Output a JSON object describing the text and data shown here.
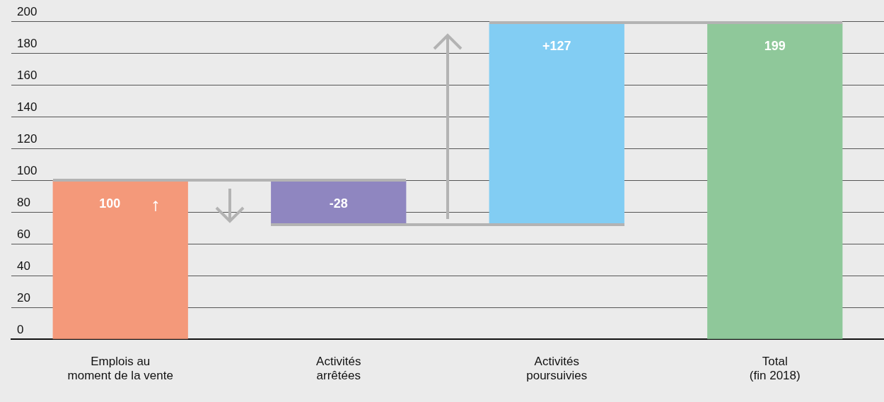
{
  "chart_data": {
    "type": "bar",
    "categories": [
      "Emplois au moment de la vente",
      "Activités arrêtées",
      "Activités poursuivies",
      "Total (fin 2018)"
    ],
    "values": [
      100,
      -28,
      127,
      199
    ],
    "base": [
      0,
      100,
      72,
      0
    ],
    "colors": [
      "#f4997a",
      "#8f86c0",
      "#82cdf3",
      "#8fc89a"
    ],
    "value_labels": [
      "100",
      "-28",
      "+127",
      "199"
    ],
    "ylim": [
      0,
      200
    ],
    "yticks": [
      0,
      20,
      40,
      60,
      80,
      100,
      120,
      140,
      160,
      180,
      200
    ],
    "grid": "y",
    "legend": false
  }
}
